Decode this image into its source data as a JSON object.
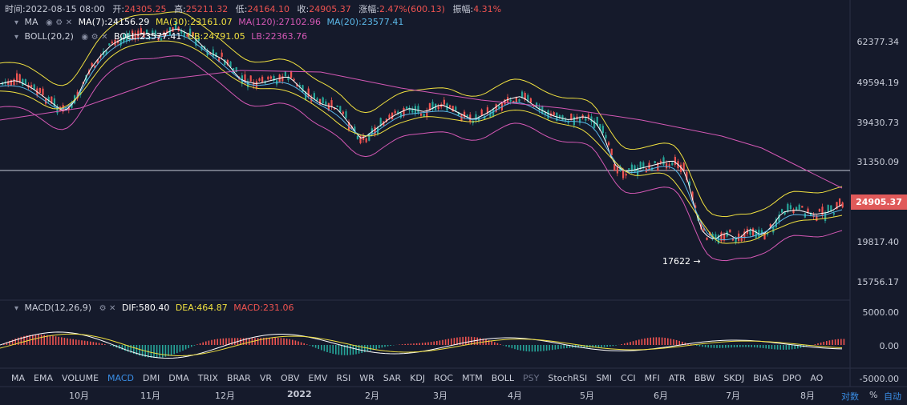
{
  "info": {
    "time_label": "时间:",
    "time": "2022-08-15 08:00",
    "open_label": "开:",
    "open": "24305.25",
    "high_label": "高:",
    "high": "25211.32",
    "low_label": "低:",
    "low": "24164.10",
    "close_label": "收:",
    "close": "24905.37",
    "change_label": "涨幅:",
    "change": "2.47%(600.13)",
    "amp_label": "振幅:",
    "amp": "4.31%"
  },
  "ma": {
    "name": "MA",
    "ma7": "MA(7):24156.29",
    "ma30": "MA(30):23161.07",
    "ma120": "MA(120):27102.96",
    "ma20": "MA(20):23577.41"
  },
  "boll": {
    "name": "BOLL(20,2)",
    "boll": "BOLL:23577.41",
    "ub": "UB:24791.05",
    "lb": "LB:22363.76"
  },
  "macd": {
    "name": "MACD(12,26,9)",
    "dif": "DIF:580.40",
    "dea": "DEA:464.87",
    "macd": "MACD:231.06"
  },
  "price_axis": [
    "62377.34",
    "49594.19",
    "39430.73",
    "31350.09",
    "19817.40",
    "15756.17"
  ],
  "current_price": "24905.37",
  "macd_axis": [
    "5000.00",
    "0.00",
    "-5000.00"
  ],
  "low_marker": "17622",
  "low_arrow": "→",
  "indicators": [
    "MA",
    "EMA",
    "VOLUME",
    "MACD",
    "DMI",
    "DMA",
    "TRIX",
    "BRAR",
    "VR",
    "OBV",
    "EMV",
    "RSI",
    "WR",
    "SAR",
    "KDJ",
    "ROC",
    "MTM",
    "BOLL",
    "PSY",
    "StochRSI",
    "SMI",
    "CCI",
    "MFI",
    "ATR",
    "BBW",
    "SKDJ",
    "BIAS",
    "DPO",
    "AO"
  ],
  "active_indicator": "MACD",
  "dim_indicator": "PSY",
  "months": [
    "10月",
    "11月",
    "12月",
    "2022",
    "2月",
    "3月",
    "4月",
    "5月",
    "6月",
    "7月",
    "8月"
  ],
  "scale_options": {
    "log": "对数",
    "pct": "%",
    "auto": "自动"
  },
  "colors": {
    "up": "#26a69a",
    "down": "#ef5350",
    "ma7": "#ffffff",
    "ma30": "#f0e040",
    "ma120": "#d458b5",
    "ma20": "#5bb8e8",
    "accent": "#3a8ee6"
  }
}
